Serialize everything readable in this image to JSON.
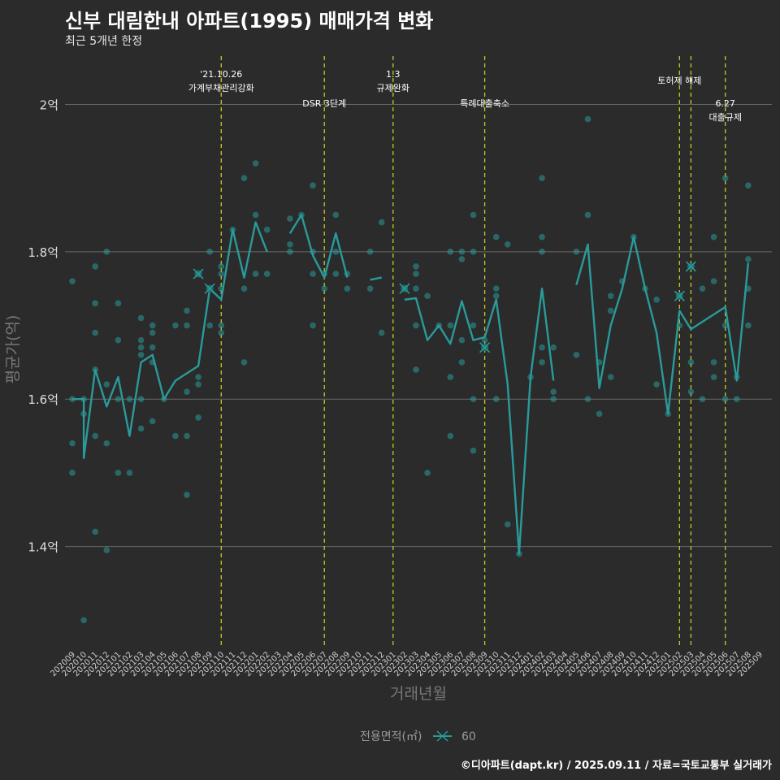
{
  "header": {
    "title": "신부 대림한내 아파트(1995) 매매가격 변화",
    "subtitle": "최근 5개년 한정"
  },
  "caption": "©디아파트(dapt.kr) / 2025.09.11 / 자료=국토교통부 실거래가",
  "colors": {
    "background": "#2b2b2b",
    "series": "#2a9a9a",
    "vline": "#c8c820",
    "grid": "#6a6a6a"
  },
  "chart_data": {
    "type": "line",
    "xlabel": "거래년월",
    "ylabel": "평균가(억)",
    "ylim": [
      1.265,
      2.07
    ],
    "yticks": [
      {
        "value": 1.4,
        "label": "1.4억"
      },
      {
        "value": 1.6,
        "label": "1.6억"
      },
      {
        "value": 1.8,
        "label": "1.8억"
      },
      {
        "value": 2.0,
        "label": "2억"
      }
    ],
    "categories": [
      "202009",
      "202010",
      "202011",
      "202012",
      "202101",
      "202102",
      "202103",
      "202104",
      "202105",
      "202106",
      "202107",
      "202108",
      "202109",
      "202110",
      "202111",
      "202112",
      "202201",
      "202202",
      "202203",
      "202204",
      "202205",
      "202206",
      "202207",
      "202208",
      "202209",
      "202210",
      "202211",
      "202212",
      "202301",
      "202302",
      "202303",
      "202304",
      "202305",
      "202306",
      "202307",
      "202308",
      "202309",
      "202310",
      "202311",
      "202312",
      "202401",
      "202402",
      "202403",
      "202404",
      "202405",
      "202406",
      "202407",
      "202408",
      "202409",
      "202410",
      "202411",
      "202412",
      "202501",
      "202502",
      "202503",
      "202504",
      "202505",
      "202506",
      "202507",
      "202508",
      "202509"
    ],
    "legend": {
      "title": "전용면적(㎡)",
      "entries": [
        "60"
      ]
    },
    "series": [
      {
        "name": "60",
        "line": [
          [
            "202009",
            1.6
          ],
          [
            "202010",
            1.6
          ],
          [
            "202010",
            1.52
          ],
          [
            "202011",
            1.64
          ],
          [
            "202011",
            1.64
          ],
          [
            "202012",
            1.59
          ],
          [
            "202101",
            1.63
          ],
          [
            "202102",
            1.55
          ],
          [
            "202103",
            1.65
          ],
          [
            "202104",
            1.66
          ],
          [
            "202105",
            1.6
          ],
          [
            "202106",
            1.625
          ],
          [
            "202108",
            1.645
          ],
          [
            "202109",
            1.75
          ],
          [
            "202110",
            1.735
          ],
          [
            "202110",
            1.735
          ],
          [
            "202111",
            1.83
          ],
          [
            "202112",
            1.765
          ],
          [
            "202201",
            1.84
          ],
          [
            "202202",
            1.8
          ],
          null,
          [
            "202204",
            1.825
          ],
          [
            "202205",
            1.85
          ],
          [
            "202206",
            1.795
          ],
          [
            "202207",
            1.765
          ],
          [
            "202208",
            1.825
          ],
          [
            "202209",
            1.765
          ],
          null,
          [
            "202211",
            1.762
          ],
          [
            "202212",
            1.765
          ],
          null,
          [
            "202302",
            1.735
          ],
          [
            "202303",
            1.737
          ],
          [
            "202304",
            1.68
          ],
          [
            "202305",
            1.7
          ],
          [
            "202306",
            1.675
          ],
          [
            "202307",
            1.733
          ],
          [
            "202308",
            1.68
          ],
          [
            "202309",
            1.684
          ],
          [
            "202310",
            1.735
          ],
          [
            "202311",
            1.62
          ],
          [
            "202312",
            1.39
          ],
          [
            "202401",
            1.63
          ],
          [
            "202402",
            1.75
          ],
          [
            "202403",
            1.625
          ],
          null,
          [
            "202405",
            1.755
          ],
          [
            "202406",
            1.81
          ],
          [
            "202407",
            1.615
          ],
          [
            "202408",
            1.7
          ],
          [
            "202409",
            1.75
          ],
          [
            "202410",
            1.82
          ],
          [
            "202411",
            1.75
          ],
          [
            "202412",
            1.69
          ],
          [
            "202501",
            1.58
          ],
          [
            "202502",
            1.72
          ],
          [
            "202503",
            1.695
          ],
          [
            "202504",
            1.705
          ],
          [
            "202506",
            1.725
          ],
          [
            "202507",
            1.625
          ],
          [
            "202508",
            1.785
          ]
        ],
        "points": [
          [
            "202009",
            1.76
          ],
          [
            "202009",
            1.6
          ],
          [
            "202009",
            1.54
          ],
          [
            "202009",
            1.5
          ],
          [
            "202010",
            1.3
          ],
          [
            "202010",
            1.58
          ],
          [
            "202010",
            1.6
          ],
          [
            "202011",
            1.78
          ],
          [
            "202011",
            1.73
          ],
          [
            "202011",
            1.69
          ],
          [
            "202011",
            1.64
          ],
          [
            "202011",
            1.55
          ],
          [
            "202011",
            1.42
          ],
          [
            "202012",
            1.8
          ],
          [
            "202012",
            1.62
          ],
          [
            "202012",
            1.54
          ],
          [
            "202012",
            1.395
          ],
          [
            "202101",
            1.73
          ],
          [
            "202101",
            1.68
          ],
          [
            "202101",
            1.6
          ],
          [
            "202101",
            1.5
          ],
          [
            "202102",
            1.6
          ],
          [
            "202102",
            1.5
          ],
          [
            "202103",
            1.71
          ],
          [
            "202103",
            1.68
          ],
          [
            "202103",
            1.67
          ],
          [
            "202103",
            1.66
          ],
          [
            "202103",
            1.6
          ],
          [
            "202103",
            1.56
          ],
          [
            "202104",
            1.7
          ],
          [
            "202104",
            1.69
          ],
          [
            "202104",
            1.67
          ],
          [
            "202104",
            1.65
          ],
          [
            "202104",
            1.57
          ],
          [
            "202105",
            1.6
          ],
          [
            "202106",
            1.7
          ],
          [
            "202106",
            1.55
          ],
          [
            "202107",
            1.72
          ],
          [
            "202107",
            1.7
          ],
          [
            "202107",
            1.61
          ],
          [
            "202107",
            1.55
          ],
          [
            "202107",
            1.47
          ],
          [
            "202108",
            1.77
          ],
          [
            "202108",
            1.63
          ],
          [
            "202108",
            1.62
          ],
          [
            "202108",
            1.575
          ],
          [
            "202109",
            1.8
          ],
          [
            "202109",
            1.75
          ],
          [
            "202109",
            1.7
          ],
          [
            "202110",
            1.78
          ],
          [
            "202110",
            1.77
          ],
          [
            "202110",
            1.75
          ],
          [
            "202110",
            1.7
          ],
          [
            "202110",
            1.69
          ],
          [
            "202111",
            1.83
          ],
          [
            "202112",
            1.9
          ],
          [
            "202112",
            1.75
          ],
          [
            "202112",
            1.65
          ],
          [
            "202201",
            1.92
          ],
          [
            "202201",
            1.85
          ],
          [
            "202201",
            1.77
          ],
          [
            "202202",
            1.83
          ],
          [
            "202202",
            1.77
          ],
          [
            "202204",
            1.845
          ],
          [
            "202204",
            1.81
          ],
          [
            "202204",
            1.8
          ],
          [
            "202205",
            1.85
          ],
          [
            "202206",
            1.89
          ],
          [
            "202206",
            1.8
          ],
          [
            "202206",
            1.77
          ],
          [
            "202206",
            1.7
          ],
          [
            "202207",
            1.77
          ],
          [
            "202207",
            1.75
          ],
          [
            "202208",
            1.85
          ],
          [
            "202208",
            1.8
          ],
          [
            "202208",
            1.77
          ],
          [
            "202209",
            1.77
          ],
          [
            "202209",
            1.75
          ],
          [
            "202211",
            1.8
          ],
          [
            "202211",
            1.75
          ],
          [
            "202212",
            1.84
          ],
          [
            "202212",
            1.69
          ],
          [
            "202302",
            1.75
          ],
          [
            "202303",
            1.78
          ],
          [
            "202303",
            1.77
          ],
          [
            "202303",
            1.75
          ],
          [
            "202303",
            1.7
          ],
          [
            "202303",
            1.64
          ],
          [
            "202304",
            1.74
          ],
          [
            "202304",
            1.5
          ],
          [
            "202305",
            1.7
          ],
          [
            "202306",
            1.8
          ],
          [
            "202306",
            1.7
          ],
          [
            "202306",
            1.63
          ],
          [
            "202306",
            1.55
          ],
          [
            "202307",
            1.8
          ],
          [
            "202307",
            1.79
          ],
          [
            "202307",
            1.68
          ],
          [
            "202307",
            1.65
          ],
          [
            "202308",
            1.85
          ],
          [
            "202308",
            1.8
          ],
          [
            "202308",
            1.7
          ],
          [
            "202308",
            1.6
          ],
          [
            "202308",
            1.53
          ],
          [
            "202309",
            1.68
          ],
          [
            "202309",
            1.67
          ],
          [
            "202310",
            1.82
          ],
          [
            "202310",
            1.75
          ],
          [
            "202310",
            1.74
          ],
          [
            "202310",
            1.6
          ],
          [
            "202311",
            1.81
          ],
          [
            "202311",
            1.43
          ],
          [
            "202312",
            1.39
          ],
          [
            "202401",
            1.63
          ],
          [
            "202402",
            1.9
          ],
          [
            "202402",
            1.82
          ],
          [
            "202402",
            1.8
          ],
          [
            "202402",
            1.67
          ],
          [
            "202402",
            1.65
          ],
          [
            "202403",
            1.67
          ],
          [
            "202403",
            1.61
          ],
          [
            "202403",
            1.6
          ],
          [
            "202405",
            1.8
          ],
          [
            "202405",
            1.66
          ],
          [
            "202406",
            1.98
          ],
          [
            "202406",
            1.85
          ],
          [
            "202406",
            1.6
          ],
          [
            "202407",
            1.65
          ],
          [
            "202407",
            1.58
          ],
          [
            "202408",
            1.74
          ],
          [
            "202408",
            1.72
          ],
          [
            "202408",
            1.63
          ],
          [
            "202409",
            1.76
          ],
          [
            "202410",
            1.82
          ],
          [
            "202411",
            1.75
          ],
          [
            "202412",
            1.735
          ],
          [
            "202412",
            1.62
          ],
          [
            "202501",
            1.58
          ],
          [
            "202502",
            1.74
          ],
          [
            "202502",
            1.7
          ],
          [
            "202503",
            1.78
          ],
          [
            "202503",
            1.65
          ],
          [
            "202503",
            1.61
          ],
          [
            "202504",
            1.75
          ],
          [
            "202504",
            1.6
          ],
          [
            "202505",
            1.82
          ],
          [
            "202505",
            1.76
          ],
          [
            "202505",
            1.65
          ],
          [
            "202505",
            1.63
          ],
          [
            "202506",
            1.9
          ],
          [
            "202506",
            1.7
          ],
          [
            "202506",
            1.6
          ],
          [
            "202507",
            1.63
          ],
          [
            "202507",
            1.6
          ],
          [
            "202508",
            1.89
          ],
          [
            "202508",
            1.79
          ],
          [
            "202508",
            1.75
          ],
          [
            "202508",
            1.7
          ]
        ],
        "max_markers": [
          [
            "202108",
            1.77
          ],
          [
            "202109",
            1.75
          ],
          [
            "202302",
            1.75
          ],
          [
            "202309",
            1.67
          ],
          [
            "202502",
            1.74
          ],
          [
            "202503",
            1.78
          ]
        ]
      }
    ],
    "annotations": [
      {
        "x": "202110",
        "lines": [
          "'21.10.26",
          "가계부채관리강화"
        ],
        "level": "top"
      },
      {
        "x": "202207",
        "lines": [
          "DSR 3단계"
        ],
        "level": "mid"
      },
      {
        "x": "202301",
        "lines": [
          "1.3",
          "규제완화"
        ],
        "level": "top"
      },
      {
        "x": "202309",
        "lines": [
          "특례대출축소"
        ],
        "level": "mid"
      },
      {
        "x": "202502",
        "lines": [
          "토허제 해제"
        ],
        "level": "upper"
      },
      {
        "x": "202503",
        "lines": [],
        "level": "none"
      },
      {
        "x": "202506",
        "lines": [
          "6.27",
          "대출규제"
        ],
        "level": "mid"
      }
    ]
  }
}
